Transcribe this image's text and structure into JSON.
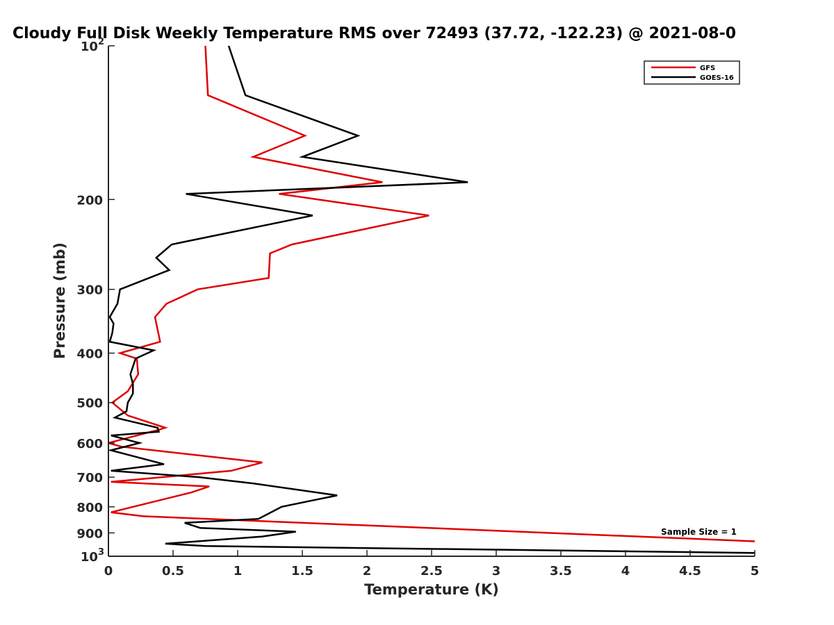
{
  "chart_data": {
    "type": "line",
    "title": "Cloudy Full Disk Weekly Temperature RMS over 72493 (37.72, -122.23) @ 2021-08-0",
    "xlabel": "Temperature (K)",
    "ylabel": "Pressure (mb)",
    "xlim": [
      0,
      5
    ],
    "ylim": [
      100,
      1000
    ],
    "y_scale": "log",
    "y_reversed": true,
    "x_ticks": [
      "0",
      "0.5",
      "1",
      "1.5",
      "2",
      "2.5",
      "3",
      "3.5",
      "4",
      "4.5",
      "5"
    ],
    "x_tick_values": [
      0,
      0.5,
      1,
      1.5,
      2,
      2.5,
      3,
      3.5,
      4,
      4.5,
      5
    ],
    "y_ticks": [
      {
        "value": 100,
        "base": "10",
        "exp": "2"
      },
      {
        "value": 200,
        "label": "200"
      },
      {
        "value": 300,
        "label": "300"
      },
      {
        "value": 400,
        "label": "400"
      },
      {
        "value": 500,
        "label": "500"
      },
      {
        "value": 600,
        "label": "600"
      },
      {
        "value": 700,
        "label": "700"
      },
      {
        "value": 800,
        "label": "800"
      },
      {
        "value": 900,
        "label": "900"
      },
      {
        "value": 1000,
        "base": "10",
        "exp": "3"
      }
    ],
    "grid": false,
    "legend_position": "top-right",
    "annotation": "Sample Size = 1",
    "series": [
      {
        "name": "GFS",
        "color": "#e00000",
        "points": [
          [
            0.75,
            100
          ],
          [
            0.77,
            125
          ],
          [
            1.52,
            150
          ],
          [
            1.12,
            165
          ],
          [
            2.12,
            185
          ],
          [
            1.32,
            195
          ],
          [
            2.48,
            215
          ],
          [
            1.42,
            245
          ],
          [
            1.25,
            255
          ],
          [
            1.24,
            285
          ],
          [
            0.69,
            300
          ],
          [
            0.45,
            320
          ],
          [
            0.36,
            340
          ],
          [
            0.4,
            380
          ],
          [
            0.09,
            400
          ],
          [
            0.22,
            410
          ],
          [
            0.23,
            440
          ],
          [
            0.15,
            475
          ],
          [
            0.03,
            500
          ],
          [
            0.15,
            530
          ],
          [
            0.44,
            560
          ],
          [
            0.39,
            565
          ],
          [
            0.0,
            600
          ],
          [
            0.1,
            610
          ],
          [
            1.19,
            655
          ],
          [
            0.95,
            680
          ],
          [
            0.02,
            715
          ],
          [
            0.78,
            730
          ],
          [
            0.64,
            750
          ],
          [
            0.02,
            820
          ],
          [
            0.27,
            835
          ],
          [
            5.0,
            935
          ]
        ]
      },
      {
        "name": "GOES-16",
        "color": "#000000",
        "points": [
          [
            0.93,
            100
          ],
          [
            1.06,
            125
          ],
          [
            1.93,
            150
          ],
          [
            1.5,
            165
          ],
          [
            2.78,
            185
          ],
          [
            0.6,
            195
          ],
          [
            1.58,
            215
          ],
          [
            0.49,
            245
          ],
          [
            0.37,
            260
          ],
          [
            0.47,
            275
          ],
          [
            0.09,
            300
          ],
          [
            0.07,
            320
          ],
          [
            0.01,
            340
          ],
          [
            0.04,
            350
          ],
          [
            0.03,
            365
          ],
          [
            0.01,
            380
          ],
          [
            0.35,
            395
          ],
          [
            0.21,
            410
          ],
          [
            0.17,
            440
          ],
          [
            0.19,
            460
          ],
          [
            0.19,
            480
          ],
          [
            0.15,
            500
          ],
          [
            0.14,
            520
          ],
          [
            0.05,
            535
          ],
          [
            0.38,
            560
          ],
          [
            0.39,
            570
          ],
          [
            0.02,
            580
          ],
          [
            0.24,
            600
          ],
          [
            0.02,
            620
          ],
          [
            0.43,
            660
          ],
          [
            0.02,
            680
          ],
          [
            0.7,
            700
          ],
          [
            1.12,
            720
          ],
          [
            1.77,
            760
          ],
          [
            1.55,
            780
          ],
          [
            1.34,
            800
          ],
          [
            1.16,
            845
          ],
          [
            0.59,
            860
          ],
          [
            0.71,
            880
          ],
          [
            1.45,
            895
          ],
          [
            1.19,
            915
          ],
          [
            0.44,
            945
          ],
          [
            0.75,
            955
          ],
          [
            5.0,
            985
          ]
        ]
      }
    ]
  }
}
